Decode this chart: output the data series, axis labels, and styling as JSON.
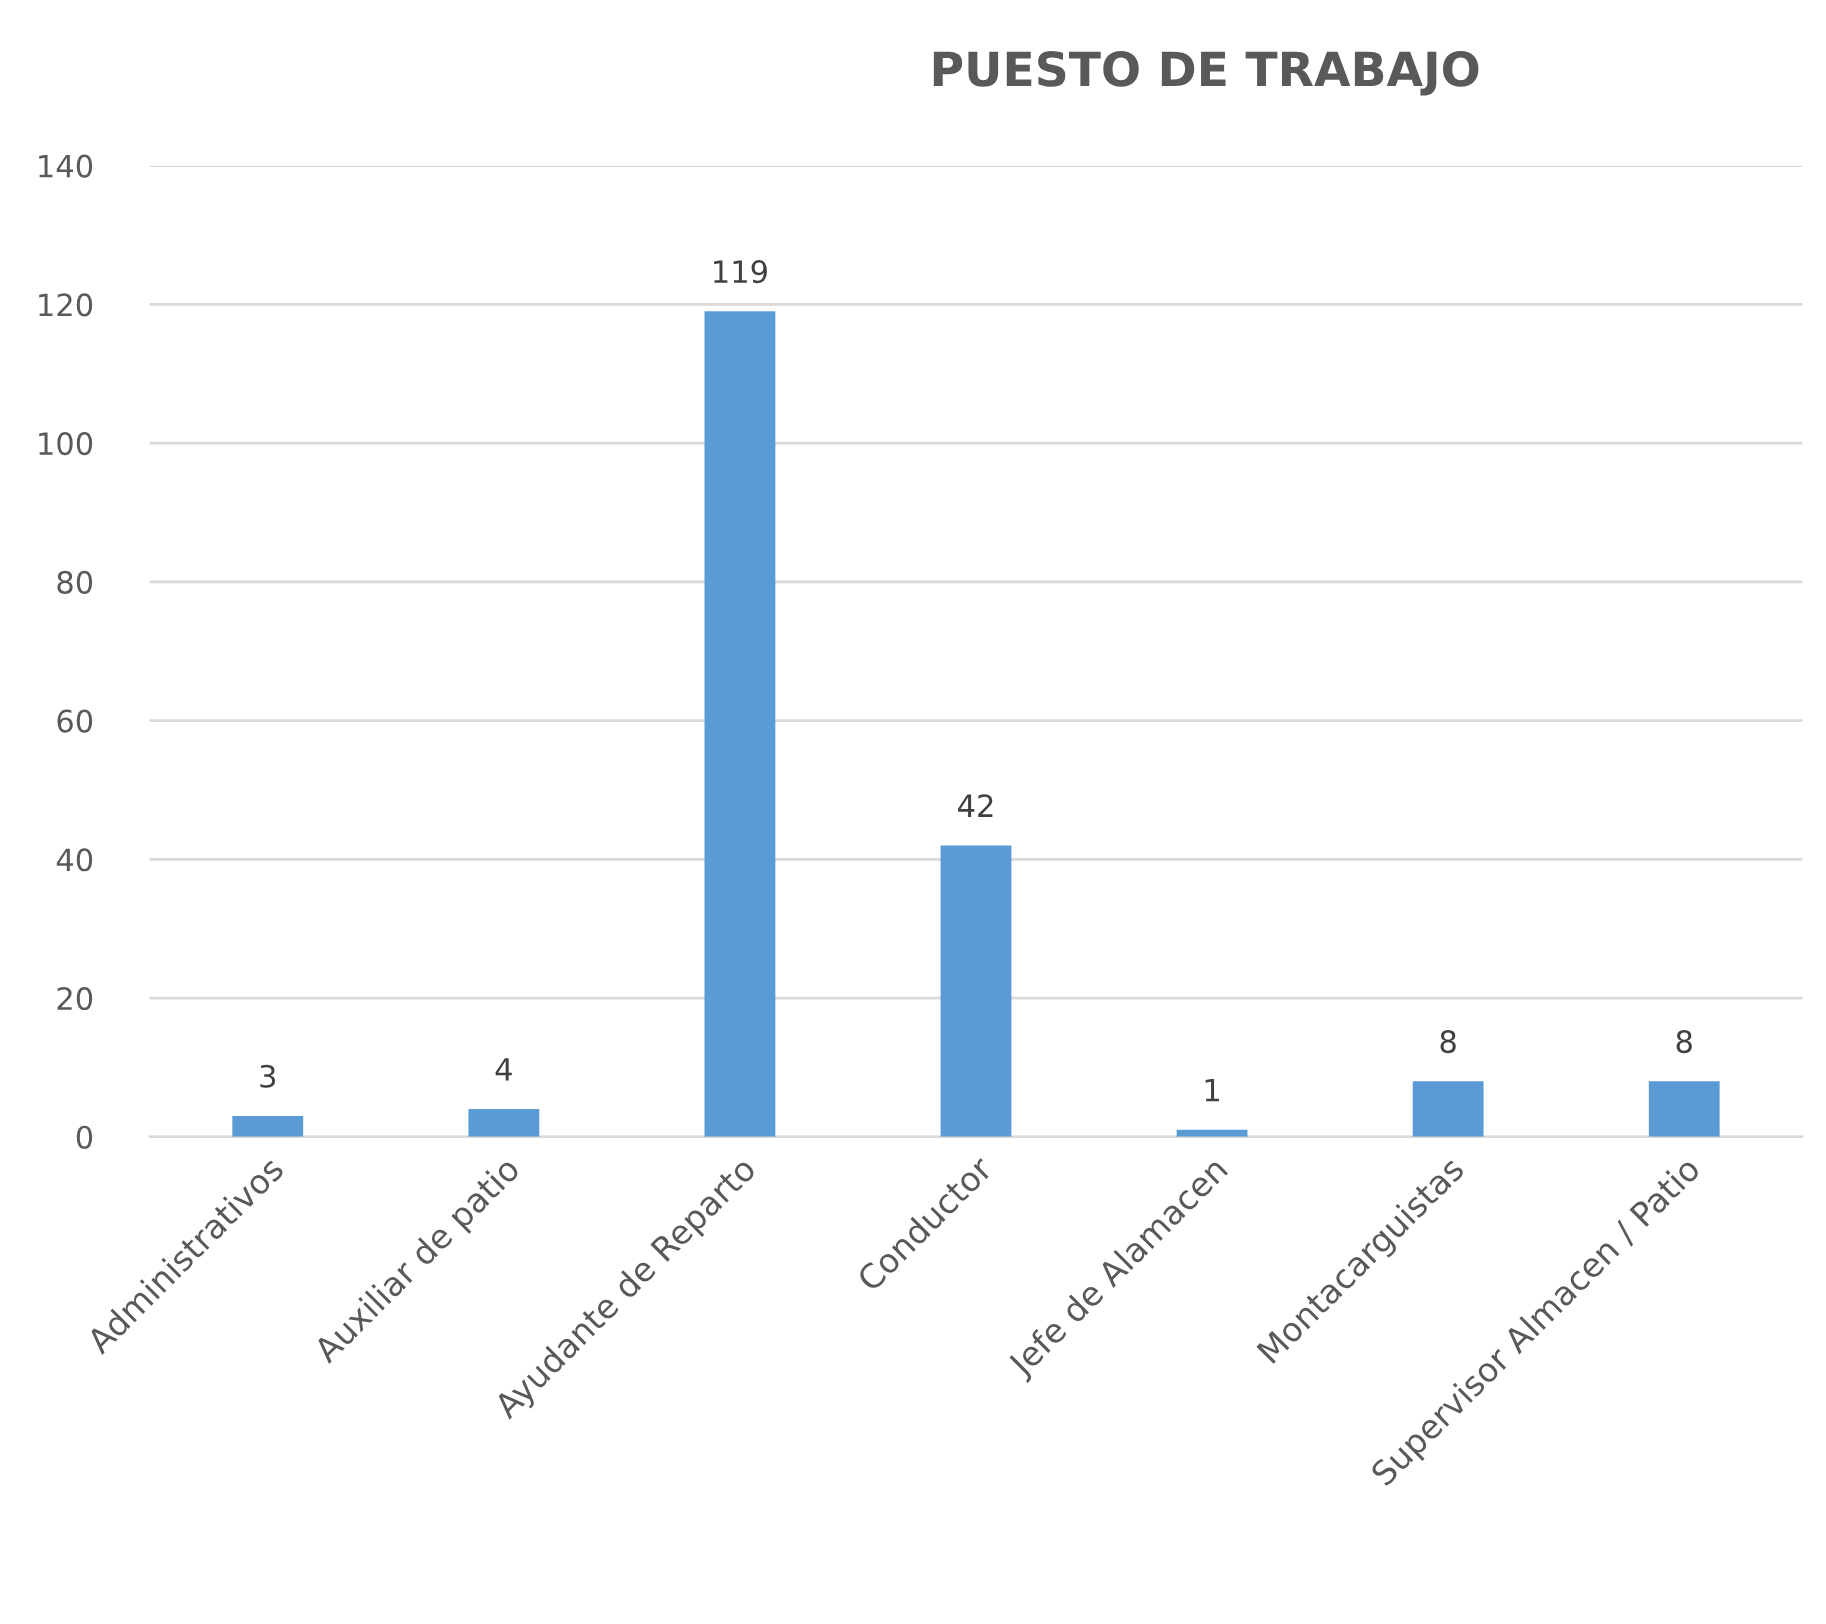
{
  "chart_data": {
    "type": "bar",
    "title": "PUESTO DE TRABAJO",
    "categories": [
      "Administrativos",
      "Auxiliar de patio",
      "Ayudante de Reparto",
      "Conductor",
      "Jefe de Alamacen",
      "Montacarguistas",
      "Supervisor Almacen / Patio"
    ],
    "values": [
      3,
      4,
      119,
      42,
      1,
      8,
      8
    ],
    "color": "#5b9bd5",
    "ylim": [
      0,
      140
    ],
    "yticks": [
      0,
      20,
      40,
      60,
      80,
      100,
      120,
      140
    ],
    "grid": "y",
    "data_labels": true,
    "legend": false
  }
}
